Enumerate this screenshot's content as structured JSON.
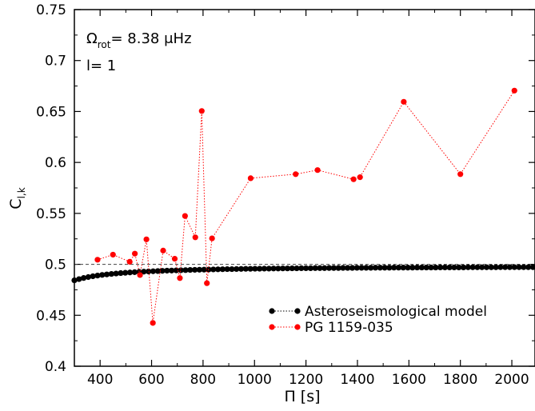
{
  "chart_data": {
    "type": "scatter",
    "title": "",
    "xlabel": "Π [s]",
    "ylabel_main": "C",
    "ylabel_sub": "l,k",
    "xlim": [
      300,
      2090
    ],
    "ylim": [
      0.4,
      0.75
    ],
    "xticks": [
      400,
      600,
      800,
      1000,
      1200,
      1400,
      1600,
      1800,
      2000
    ],
    "xtick_labels": [
      "400",
      "600",
      "800",
      "1000",
      "1200",
      "1400",
      "1600",
      "1800",
      "2000"
    ],
    "yticks": [
      0.4,
      0.45,
      0.5,
      0.55,
      0.6,
      0.65,
      0.7,
      0.75
    ],
    "ytick_labels": [
      "0.4",
      "0.45",
      "0.5",
      "0.55",
      "0.6",
      "0.65",
      "0.7",
      "0.75"
    ],
    "reference_line": 0.5,
    "grid": false,
    "legend_position": "bottom-right",
    "annotations": {
      "omega_symbol": "Ω",
      "omega_sub": "rot",
      "omega_value": "= 8.38 μHz",
      "l_value": "l= 1"
    },
    "series": [
      {
        "name": "Asteroseismological model",
        "color": "#000000",
        "marker": "circle",
        "line_style": "dotted",
        "x": [
          300,
          318,
          336,
          354,
          372,
          390,
          408,
          426,
          444,
          462,
          480,
          498,
          516,
          534,
          552,
          570,
          588,
          606,
          624,
          642,
          660,
          678,
          696,
          714,
          732,
          750,
          768,
          786,
          804,
          822,
          840,
          858,
          876,
          894,
          912,
          930,
          948,
          966,
          984,
          1002,
          1020,
          1038,
          1056,
          1074,
          1092,
          1110,
          1128,
          1146,
          1164,
          1182,
          1200,
          1218,
          1236,
          1254,
          1272,
          1290,
          1308,
          1326,
          1344,
          1362,
          1380,
          1398,
          1416,
          1434,
          1452,
          1470,
          1488,
          1506,
          1524,
          1542,
          1560,
          1578,
          1596,
          1614,
          1632,
          1650,
          1668,
          1686,
          1704,
          1722,
          1740,
          1758,
          1776,
          1794,
          1812,
          1830,
          1848,
          1866,
          1884,
          1902,
          1920,
          1938,
          1956,
          1974,
          1992,
          2010,
          2028,
          2046,
          2064,
          2082
        ],
        "values": [
          0.4843,
          0.4855,
          0.4866,
          0.4875,
          0.4883,
          0.489,
          0.4896,
          0.4901,
          0.4906,
          0.491,
          0.4914,
          0.4917,
          0.492,
          0.4923,
          0.4926,
          0.4928,
          0.493,
          0.4932,
          0.4934,
          0.4936,
          0.4938,
          0.4939,
          0.4941,
          0.4942,
          0.4943,
          0.4945,
          0.4946,
          0.4947,
          0.4948,
          0.4949,
          0.495,
          0.4951,
          0.4952,
          0.4953,
          0.4953,
          0.4954,
          0.4955,
          0.4956,
          0.4956,
          0.4957,
          0.4957,
          0.4958,
          0.4958,
          0.4959,
          0.4959,
          0.496,
          0.496,
          0.4961,
          0.4961,
          0.4962,
          0.4962,
          0.4962,
          0.4963,
          0.4963,
          0.4963,
          0.4964,
          0.4964,
          0.4964,
          0.4965,
          0.4965,
          0.4965,
          0.4966,
          0.4966,
          0.4966,
          0.4966,
          0.4967,
          0.4967,
          0.4967,
          0.4967,
          0.4968,
          0.4968,
          0.4968,
          0.4968,
          0.4968,
          0.4969,
          0.4969,
          0.4969,
          0.4969,
          0.4969,
          0.497,
          0.497,
          0.497,
          0.497,
          0.497,
          0.497,
          0.4971,
          0.4971,
          0.4971,
          0.4971,
          0.4971,
          0.4971,
          0.4971,
          0.4972,
          0.4972,
          0.4972,
          0.4972,
          0.4972,
          0.4972,
          0.4972,
          0.4972
        ]
      },
      {
        "name": "PG 1159-035",
        "color": "#ff0000",
        "marker": "circle",
        "line_style": "dotted",
        "x": [
          390,
          450,
          515,
          535,
          555,
          580,
          605,
          645,
          690,
          710,
          730,
          770,
          795,
          815,
          835,
          985,
          1160,
          1245,
          1385,
          1410,
          1580,
          1800,
          2010
        ],
        "values": [
          0.5045,
          0.5095,
          0.5025,
          0.5105,
          0.4895,
          0.5245,
          0.4425,
          0.5135,
          0.5055,
          0.4865,
          0.5475,
          0.5265,
          0.6505,
          0.4815,
          0.5255,
          0.5845,
          0.5885,
          0.5925,
          0.5835,
          0.5855,
          0.6595,
          0.5885,
          0.6705
        ]
      }
    ]
  }
}
